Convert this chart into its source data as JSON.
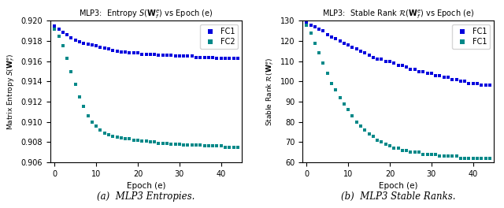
{
  "left_title": "MLP3:  Entropy $S(\\mathbf{W}_f^e)$ vs Epoch (e)",
  "right_title": "MLP3:  Stable Rank $\\mathcal{R}(\\mathbf{W}_f^e)$ vs Epoch (e)",
  "left_ylabel": "Matrix Entropy $S(\\mathbf{W}_f^e)$",
  "right_ylabel": "Stable Rank $\\mathcal{R}(\\mathbf{W}_f^e)$",
  "xlabel": "Epoch (e)",
  "left_caption": "(a)  MLP3 Entropies.",
  "right_caption": "(b)  MLP3 Stable Ranks.",
  "fc1_color": "#0000dd",
  "fc2_color": "#008888",
  "left_ylim": [
    0.906,
    0.92
  ],
  "right_ylim": [
    60,
    130
  ],
  "xlim": [
    -1,
    45
  ],
  "epochs": [
    0,
    1,
    2,
    3,
    4,
    5,
    6,
    7,
    8,
    9,
    10,
    11,
    12,
    13,
    14,
    15,
    16,
    17,
    18,
    19,
    20,
    21,
    22,
    23,
    24,
    25,
    26,
    27,
    28,
    29,
    30,
    31,
    32,
    33,
    34,
    35,
    36,
    37,
    38,
    39,
    40,
    41,
    42,
    43,
    44
  ],
  "entropy_fc1": [
    0.9195,
    0.9192,
    0.9189,
    0.9186,
    0.9183,
    0.9181,
    0.9179,
    0.9178,
    0.9177,
    0.9176,
    0.9175,
    0.9174,
    0.9173,
    0.9172,
    0.9171,
    0.917,
    0.9169,
    0.9169,
    0.9168,
    0.9168,
    0.9168,
    0.9167,
    0.9167,
    0.9167,
    0.9167,
    0.9166,
    0.9166,
    0.9166,
    0.9166,
    0.9165,
    0.9165,
    0.9165,
    0.9165,
    0.9165,
    0.9164,
    0.9164,
    0.9164,
    0.9164,
    0.9164,
    0.9163,
    0.9163,
    0.9163,
    0.9163,
    0.9163,
    0.9163
  ],
  "entropy_fc2": [
    0.9192,
    0.9185,
    0.9175,
    0.9163,
    0.915,
    0.9137,
    0.9125,
    0.9115,
    0.9106,
    0.91,
    0.9096,
    0.9092,
    0.9089,
    0.9087,
    0.9086,
    0.9085,
    0.9084,
    0.9083,
    0.9083,
    0.9082,
    0.9082,
    0.9081,
    0.9081,
    0.908,
    0.908,
    0.9079,
    0.9079,
    0.9079,
    0.9078,
    0.9078,
    0.9078,
    0.9077,
    0.9077,
    0.9077,
    0.9077,
    0.9077,
    0.9076,
    0.9076,
    0.9076,
    0.9076,
    0.9076,
    0.9075,
    0.9075,
    0.9075,
    0.9075
  ],
  "rank_fc1": [
    129,
    128,
    127,
    126,
    125,
    123,
    122,
    121,
    120,
    119,
    118,
    117,
    116,
    115,
    114,
    113,
    112,
    111,
    111,
    110,
    110,
    109,
    108,
    108,
    107,
    106,
    106,
    105,
    105,
    104,
    104,
    103,
    103,
    102,
    102,
    101,
    101,
    100,
    100,
    99,
    99,
    99,
    98,
    98,
    98
  ],
  "rank_fc2": [
    128,
    124,
    119,
    114,
    109,
    104,
    99,
    96,
    92,
    89,
    86,
    83,
    80,
    78,
    76,
    74,
    73,
    71,
    70,
    69,
    68,
    67,
    67,
    66,
    66,
    65,
    65,
    65,
    64,
    64,
    64,
    64,
    63,
    63,
    63,
    63,
    63,
    62,
    62,
    62,
    62,
    62,
    62,
    62,
    62
  ],
  "left_yticks": [
    0.906,
    0.908,
    0.91,
    0.912,
    0.914,
    0.916,
    0.918,
    0.92
  ],
  "right_yticks": [
    60,
    70,
    80,
    90,
    100,
    110,
    120,
    130
  ],
  "xticks": [
    0,
    10,
    20,
    30,
    40
  ]
}
